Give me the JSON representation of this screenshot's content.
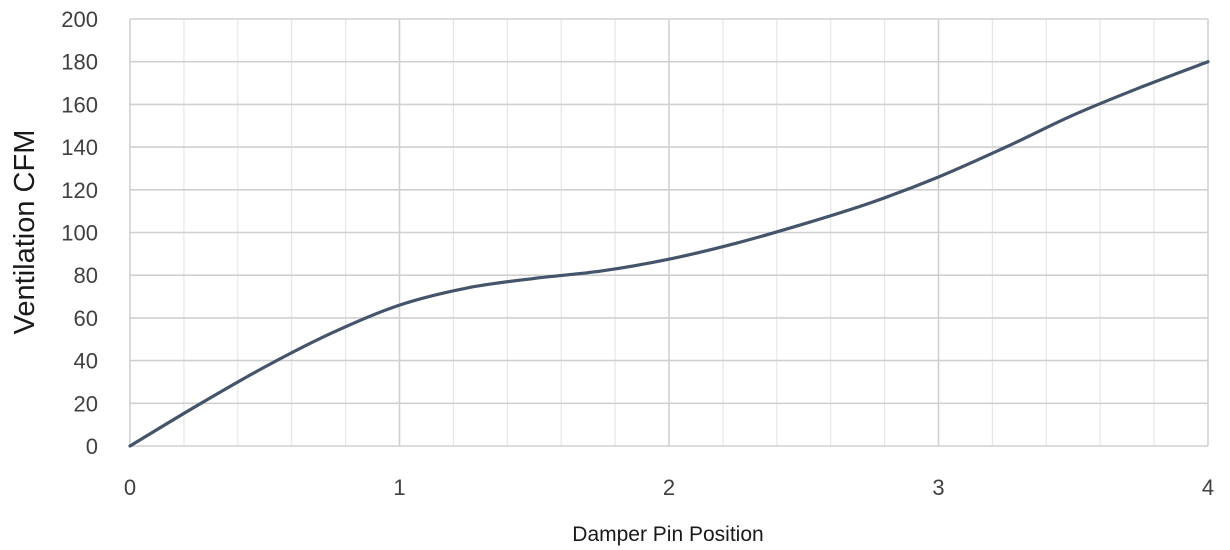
{
  "chart_data": {
    "type": "line",
    "title": "",
    "xlabel": "Damper Pin Position",
    "ylabel": "Ventilation CFM",
    "xlim": [
      0,
      4
    ],
    "ylim": [
      0,
      200
    ],
    "x_ticks": [
      "0",
      "1",
      "2",
      "3",
      "4"
    ],
    "y_ticks": [
      "0",
      "20",
      "40",
      "60",
      "80",
      "100",
      "120",
      "140",
      "160",
      "180",
      "200"
    ],
    "grid": true,
    "legend": "none",
    "series": [
      {
        "color": "#44546a",
        "x": [
          0,
          0.25,
          0.5,
          0.75,
          1,
          1.25,
          1.5,
          1.75,
          2,
          2.25,
          2.5,
          2.75,
          3,
          3.25,
          3.5,
          3.75,
          4
        ],
        "y": [
          0,
          19,
          37,
          53,
          66,
          74,
          78.5,
          82,
          87.5,
          95,
          104,
          114,
          126,
          140,
          155,
          168,
          180
        ]
      }
    ]
  }
}
